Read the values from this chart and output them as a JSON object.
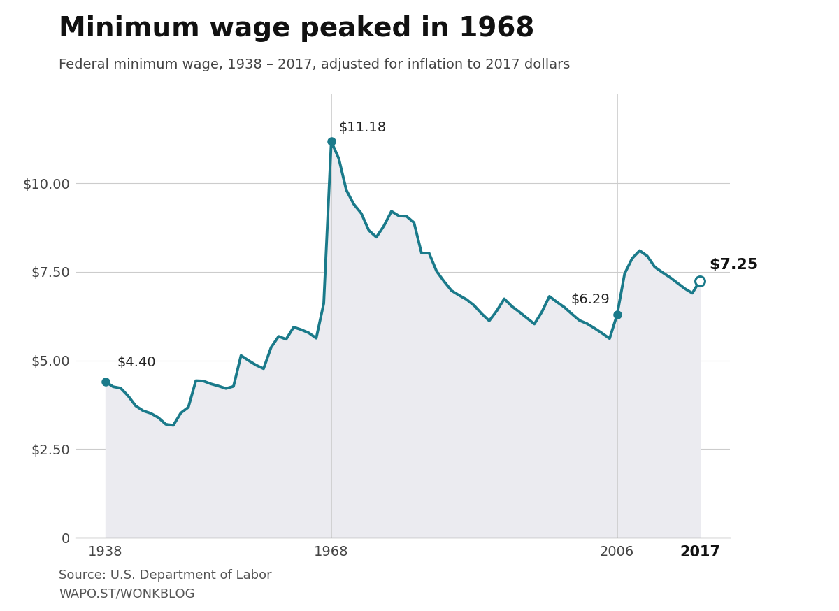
{
  "title": "Minimum wage peaked in 1968",
  "subtitle": "Federal minimum wage, 1938 – 2017, adjusted for inflation to 2017 dollars",
  "source": "Source: U.S. Department of Labor",
  "branding": "WAPO.ST/WONKBLOG",
  "line_color": "#1a7a8a",
  "fill_color": "#ebebf0",
  "background_color": "#ffffff",
  "years": [
    1938,
    1939,
    1940,
    1941,
    1942,
    1943,
    1944,
    1945,
    1946,
    1947,
    1948,
    1949,
    1950,
    1951,
    1952,
    1953,
    1954,
    1955,
    1956,
    1957,
    1958,
    1959,
    1960,
    1961,
    1962,
    1963,
    1964,
    1965,
    1966,
    1967,
    1968,
    1969,
    1970,
    1971,
    1972,
    1973,
    1974,
    1975,
    1976,
    1977,
    1978,
    1979,
    1980,
    1981,
    1982,
    1983,
    1984,
    1985,
    1986,
    1987,
    1988,
    1989,
    1990,
    1991,
    1992,
    1993,
    1994,
    1995,
    1996,
    1997,
    1998,
    1999,
    2000,
    2001,
    2002,
    2003,
    2004,
    2005,
    2006,
    2007,
    2008,
    2009,
    2010,
    2011,
    2012,
    2013,
    2014,
    2015,
    2016,
    2017
  ],
  "values": [
    4.4,
    4.26,
    4.22,
    4.0,
    3.72,
    3.58,
    3.51,
    3.39,
    3.2,
    3.17,
    3.52,
    3.68,
    4.43,
    4.42,
    4.34,
    4.28,
    4.21,
    4.27,
    5.14,
    5.0,
    4.87,
    4.77,
    5.37,
    5.68,
    5.6,
    5.94,
    5.87,
    5.78,
    5.63,
    6.61,
    11.18,
    10.7,
    9.81,
    9.41,
    9.15,
    8.67,
    8.48,
    8.8,
    9.21,
    9.08,
    9.07,
    8.89,
    8.03,
    8.03,
    7.52,
    7.23,
    6.97,
    6.84,
    6.72,
    6.55,
    6.32,
    6.12,
    6.4,
    6.74,
    6.53,
    6.37,
    6.2,
    6.03,
    6.37,
    6.81,
    6.65,
    6.5,
    6.31,
    6.13,
    6.04,
    5.91,
    5.77,
    5.62,
    6.29,
    7.45,
    7.88,
    8.1,
    7.95,
    7.64,
    7.49,
    7.35,
    7.19,
    7.03,
    6.9,
    7.25
  ],
  "xlim": [
    1934,
    2021
  ],
  "ylim": [
    0,
    12.5
  ],
  "yticks": [
    0,
    2.5,
    5.0,
    7.5,
    10.0
  ],
  "ytick_labels": [
    "0",
    "$2.50",
    "$5.00",
    "$7.50",
    "$10.00"
  ],
  "xtick_years": [
    1938,
    1968,
    2006,
    2017
  ],
  "xtick_labels": [
    "1938",
    "1968",
    "2006",
    "2017"
  ],
  "vline_years": [
    1968,
    2006
  ],
  "vline_color": "#cccccc",
  "annot_1938_year": 1938,
  "annot_1938_val": 4.4,
  "annot_1938_label": "$4.40",
  "annot_1968_year": 1968,
  "annot_1968_val": 11.18,
  "annot_1968_label": "$11.18",
  "annot_2006_year": 2006,
  "annot_2006_val": 6.29,
  "annot_2006_label": "$6.29",
  "annot_2017_year": 2017,
  "annot_2017_val": 7.25,
  "annot_2017_label": "$7.25",
  "title_fontsize": 28,
  "subtitle_fontsize": 14,
  "tick_fontsize": 14,
  "annotation_fontsize": 14,
  "source_fontsize": 13
}
